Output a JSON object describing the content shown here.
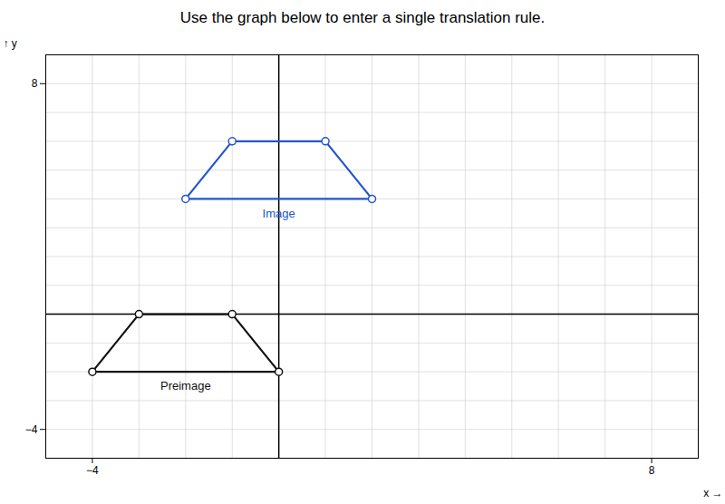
{
  "chart_data": {
    "type": "polygon",
    "title": "Use the graph below to enter a single translation rule.",
    "xlabel": "x",
    "ylabel": "y",
    "xlim": [
      -5,
      9
    ],
    "ylim": [
      -5,
      9
    ],
    "xticks": [
      -4,
      8
    ],
    "yticks": [
      -4,
      8
    ],
    "grid": true,
    "marker": "circle",
    "series": [
      {
        "name": "Preimage",
        "color": "#111111",
        "x": [
          -4,
          0,
          -1,
          -3
        ],
        "y": [
          -2,
          -2,
          0,
          0
        ]
      },
      {
        "name": "Image",
        "color": "#2255cc",
        "x": [
          -2,
          2,
          1,
          -1
        ],
        "y": [
          4,
          4,
          6,
          6
        ]
      }
    ]
  }
}
